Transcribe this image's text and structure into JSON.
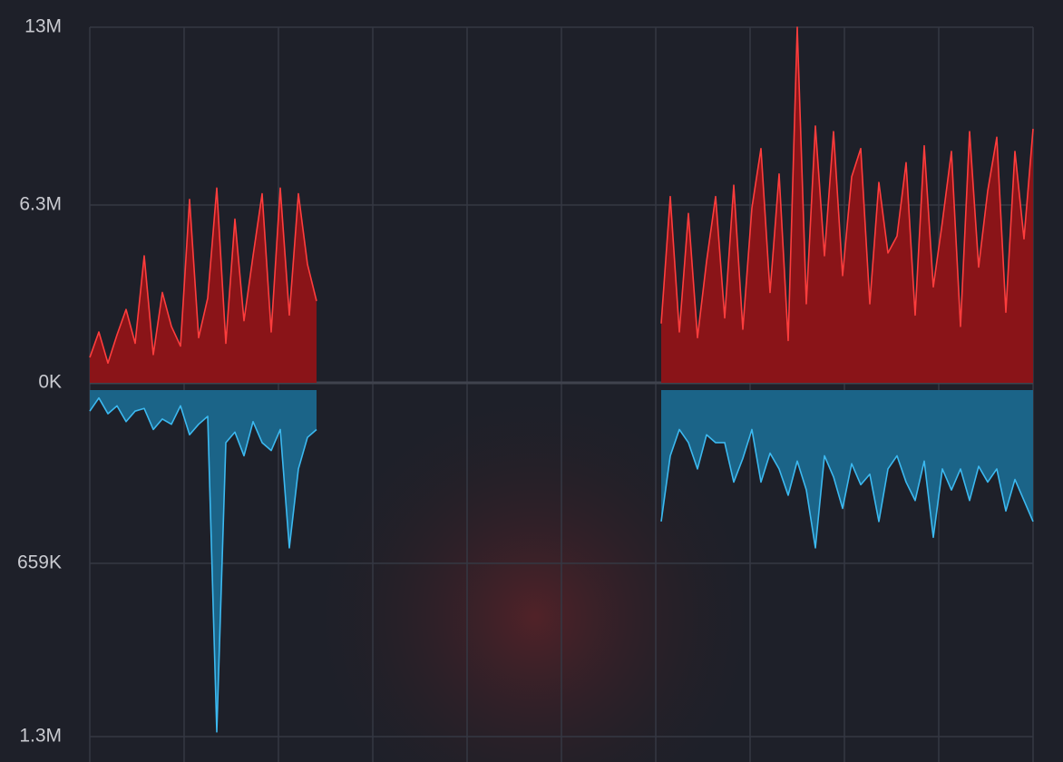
{
  "chart_data": {
    "type": "mirrored-area",
    "ylim": [
      0,
      12600000
    ],
    "yticks": [
      {
        "value": 0,
        "label": "0K"
      },
      {
        "value": 6300000,
        "label": "6.3M"
      },
      {
        "value": 12600000,
        "label": "13M"
      }
    ],
    "y2lim": [
      0,
      1318000
    ],
    "y2ticks": [
      {
        "value": 659000,
        "label": "659K"
      },
      {
        "value": 1318000,
        "label": "1.3M"
      }
    ],
    "grid": true,
    "series": [
      {
        "color": "#ff3d3d",
        "fill": "#8a1418",
        "values": [
          900000,
          1800000,
          700000,
          1700000,
          2600000,
          1400000,
          4500000,
          1000000,
          3200000,
          2000000,
          1300000,
          6500000,
          1600000,
          3000000,
          6900000,
          1400000,
          5800000,
          2200000,
          4500000,
          6700000,
          1800000,
          6900000,
          2400000,
          6700000,
          4200000,
          2900000,
          null,
          null,
          null,
          null,
          null,
          null,
          null,
          null,
          null,
          null,
          null,
          null,
          null,
          null,
          null,
          null,
          null,
          null,
          null,
          null,
          null,
          null,
          null,
          null,
          null,
          null,
          null,
          null,
          null,
          null,
          null,
          null,
          null,
          null,
          null,
          null,
          null,
          2100000,
          6600000,
          1800000,
          6000000,
          1600000,
          4300000,
          6600000,
          2300000,
          7000000,
          1900000,
          6200000,
          8300000,
          3200000,
          7400000,
          1500000,
          12600000,
          2800000,
          9100000,
          4500000,
          8900000,
          3800000,
          7300000,
          8300000,
          2800000,
          7100000,
          4600000,
          5200000,
          7800000,
          2400000,
          8400000,
          3400000,
          5700000,
          8200000,
          2000000,
          8900000,
          4100000,
          6800000,
          8700000,
          2500000,
          8200000,
          5100000,
          9000000
        ]
      },
      {
        "color": "#3cb9f0",
        "fill": "#1b6488",
        "axis": "y2",
        "values": [
          80000,
          30000,
          90000,
          60000,
          120000,
          80000,
          70000,
          150000,
          110000,
          130000,
          60000,
          170000,
          130000,
          100000,
          1300000,
          200000,
          160000,
          250000,
          120000,
          200000,
          230000,
          150000,
          600000,
          300000,
          180000,
          150000,
          null,
          null,
          null,
          null,
          null,
          null,
          null,
          null,
          null,
          null,
          null,
          null,
          null,
          null,
          null,
          null,
          null,
          null,
          null,
          null,
          null,
          null,
          null,
          null,
          null,
          null,
          null,
          null,
          null,
          null,
          null,
          null,
          null,
          null,
          null,
          null,
          null,
          500000,
          250000,
          150000,
          200000,
          300000,
          170000,
          200000,
          200000,
          350000,
          260000,
          150000,
          350000,
          240000,
          300000,
          400000,
          270000,
          380000,
          600000,
          250000,
          330000,
          450000,
          280000,
          360000,
          320000,
          500000,
          300000,
          250000,
          350000,
          420000,
          270000,
          560000,
          300000,
          380000,
          300000,
          420000,
          290000,
          350000,
          300000,
          460000,
          340000,
          420000,
          500000
        ]
      }
    ]
  }
}
